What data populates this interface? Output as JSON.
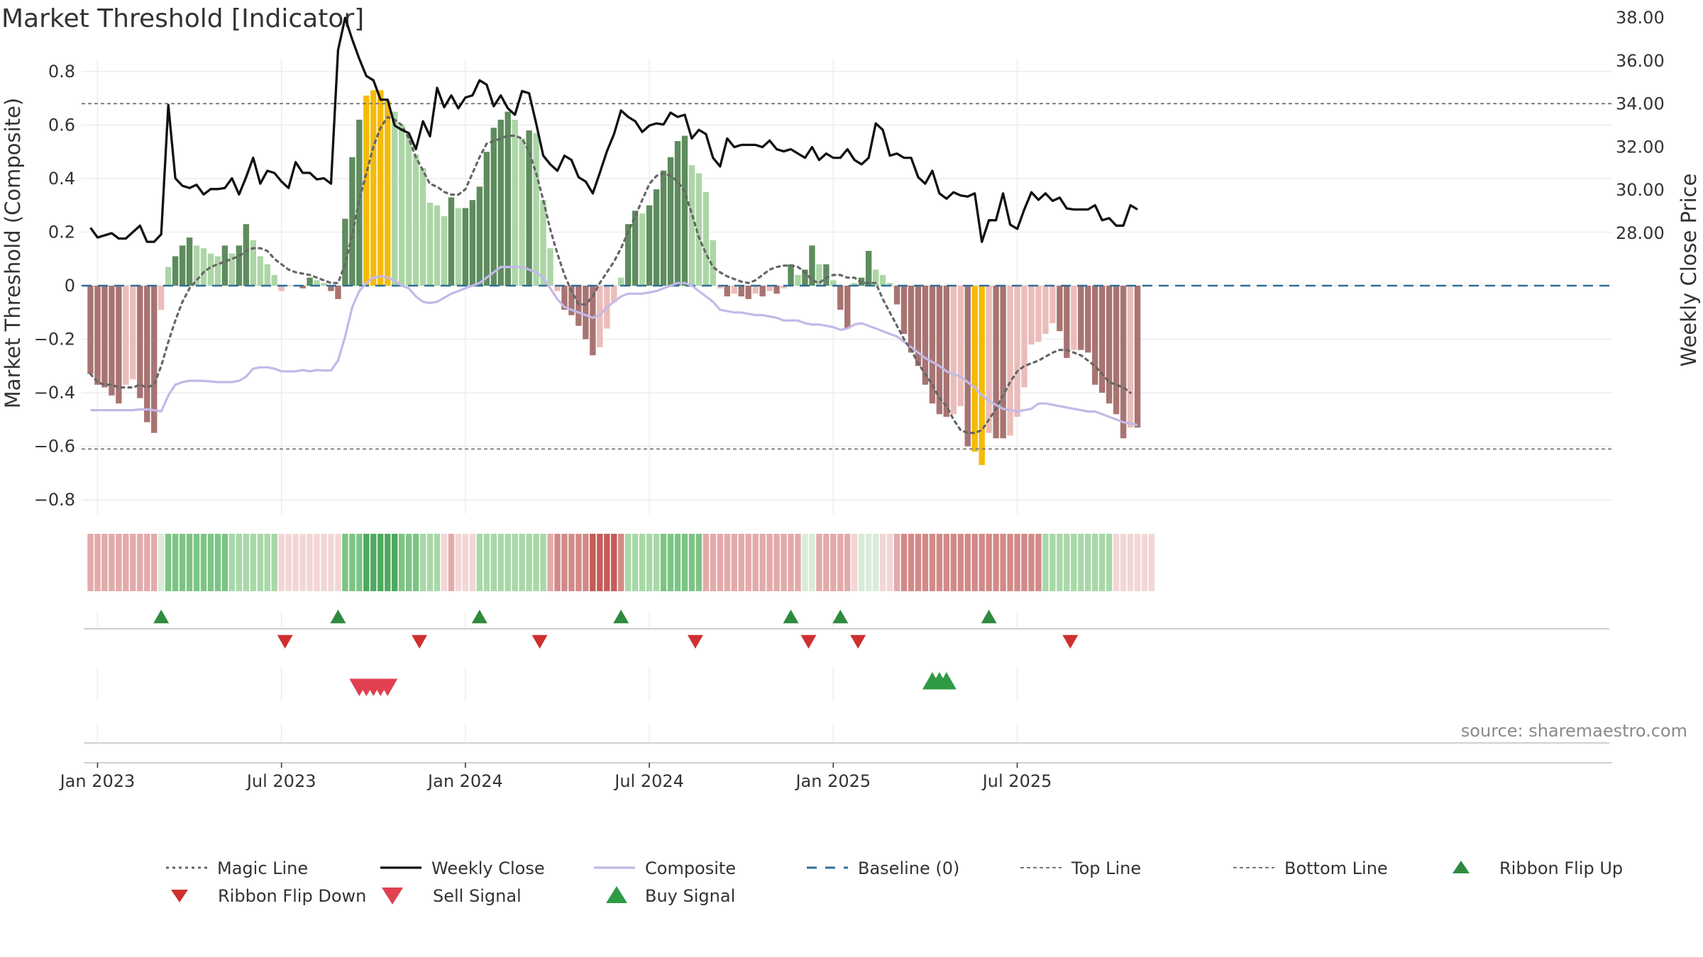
{
  "chart_data": {
    "type": "bar",
    "title": "Market Threshold [Indicator]",
    "ylabel": "Market Threshold (Composite)",
    "y2label": "Weekly Close Price",
    "ylim": [
      -0.85,
      0.85
    ],
    "y2lim": [
      26.95,
      39.8
    ],
    "y_ticks": [
      {
        "v": 0.8,
        "label": "0.8"
      },
      {
        "v": 0.6,
        "label": "0.6"
      },
      {
        "v": 0.4,
        "label": "0.4"
      },
      {
        "v": 0.2,
        "label": "0.2"
      },
      {
        "v": 0,
        "label": "0"
      },
      {
        "v": -0.2,
        "label": "−0.2"
      },
      {
        "v": -0.4,
        "label": "−0.4"
      },
      {
        "v": -0.6,
        "label": "−0.6"
      },
      {
        "v": -0.8,
        "label": "−0.8"
      }
    ],
    "y2_ticks": [
      {
        "v": 38,
        "label": "38.00"
      },
      {
        "v": 36,
        "label": "36.00"
      },
      {
        "v": 34,
        "label": "34.00"
      },
      {
        "v": 32,
        "label": "32.00"
      },
      {
        "v": 30,
        "label": "30.00"
      },
      {
        "v": 28,
        "label": "28.00"
      }
    ],
    "x_ticks": [
      {
        "week": 1.5,
        "label": "Jan 2023"
      },
      {
        "week": 27.5,
        "label": "Jul 2023"
      },
      {
        "week": 53.5,
        "label": "Jan 2024"
      },
      {
        "week": 79.5,
        "label": "Jul 2024"
      },
      {
        "week": 105.5,
        "label": "Jan 2025"
      },
      {
        "week": 131.5,
        "label": "Jul 2025"
      }
    ],
    "top_line": 0.68,
    "bottom_line": -0.61,
    "baseline": 0,
    "composite_bars": [
      -0.33,
      -0.37,
      -0.38,
      -0.41,
      -0.44,
      -0.37,
      -0.35,
      -0.42,
      -0.51,
      -0.55,
      -0.09,
      0.07,
      0.11,
      0.15,
      0.18,
      0.15,
      0.14,
      0.12,
      0.11,
      0.15,
      0.12,
      0.15,
      0.23,
      0.17,
      0.11,
      0.08,
      0.04,
      -0.02,
      0,
      0,
      -0.01,
      0.03,
      0.02,
      0.01,
      -0.02,
      -0.05,
      0.25,
      0.48,
      0.62,
      0.71,
      0.73,
      0.73,
      0.69,
      0.65,
      0.6,
      0.56,
      0.49,
      0.44,
      0.31,
      0.3,
      0.26,
      0.33,
      0.29,
      0.29,
      0.32,
      0.37,
      0.5,
      0.59,
      0.62,
      0.65,
      0.62,
      0.55,
      0.58,
      0.57,
      0.32,
      0.14,
      -0.02,
      -0.09,
      -0.11,
      -0.15,
      -0.2,
      -0.26,
      -0.23,
      -0.16,
      -0.06,
      0.03,
      0.23,
      0.28,
      0.27,
      0.3,
      0.36,
      0.43,
      0.48,
      0.54,
      0.56,
      0.45,
      0.42,
      0.35,
      0.17,
      -0.01,
      -0.04,
      -0.03,
      -0.04,
      -0.05,
      -0.03,
      -0.04,
      -0.02,
      -0.03,
      -0.01,
      0.08,
      0.04,
      0.06,
      0.15,
      0.08,
      0.08,
      0.02,
      -0.09,
      -0.16,
      0.01,
      0.03,
      0.13,
      0.06,
      0.04,
      0.01,
      -0.07,
      -0.18,
      -0.25,
      -0.3,
      -0.37,
      -0.44,
      -0.48,
      -0.49,
      -0.48,
      -0.45,
      -0.6,
      -0.62,
      -0.67,
      -0.55,
      -0.57,
      -0.57,
      -0.56,
      -0.49,
      -0.38,
      -0.22,
      -0.21,
      -0.18,
      -0.14,
      -0.17,
      -0.27,
      -0.24,
      -0.24,
      -0.25,
      -0.37,
      -0.4,
      -0.44,
      -0.48,
      -0.57,
      -0.53,
      -0.53
    ],
    "weekly_close": [
      28.25,
      27.8,
      27.9,
      28.0,
      27.75,
      27.75,
      28.05,
      28.35,
      27.6,
      27.6,
      27.95,
      33.95,
      30.55,
      30.2,
      30.1,
      30.25,
      29.8,
      30.05,
      30.05,
      30.1,
      30.55,
      29.8,
      30.6,
      31.5,
      30.3,
      30.9,
      30.8,
      30.4,
      30.1,
      31.3,
      30.8,
      30.8,
      30.5,
      30.55,
      30.3,
      36.5,
      38.0,
      37.0,
      36.1,
      35.3,
      35.1,
      34.2,
      34.2,
      33.0,
      32.8,
      32.65,
      31.9,
      33.2,
      32.5,
      34.75,
      33.85,
      34.4,
      33.8,
      34.3,
      34.4,
      35.1,
      34.9,
      33.9,
      34.4,
      33.8,
      33.5,
      34.6,
      34.5,
      33.1,
      31.6,
      31.2,
      30.9,
      31.6,
      31.4,
      30.6,
      30.4,
      29.85,
      30.8,
      31.8,
      32.6,
      33.7,
      33.4,
      33.2,
      32.7,
      33.0,
      33.1,
      33.05,
      33.6,
      33.4,
      33.5,
      32.4,
      32.8,
      32.6,
      31.5,
      31.1,
      32.4,
      32.0,
      32.1,
      32.1,
      32.1,
      32.0,
      32.3,
      31.9,
      31.8,
      31.9,
      31.7,
      31.5,
      32.0,
      31.4,
      31.7,
      31.5,
      31.5,
      31.9,
      31.4,
      31.2,
      31.5,
      33.1,
      32.8,
      31.6,
      31.7,
      31.5,
      31.5,
      30.6,
      30.3,
      30.9,
      29.85,
      29.6,
      29.9,
      29.75,
      29.7,
      29.85,
      27.6,
      28.6,
      28.6,
      29.85,
      28.4,
      28.2,
      29.1,
      29.9,
      29.55,
      29.85,
      29.5,
      29.65,
      29.15,
      29.1,
      29.1,
      29.1,
      29.3,
      28.6,
      28.7,
      28.35,
      28.35,
      29.3,
      29.1
    ],
    "composite_line": [
      -0.465,
      -0.465,
      -0.465,
      -0.465,
      -0.465,
      -0.465,
      -0.465,
      -0.462,
      -0.462,
      -0.465,
      -0.47,
      -0.41,
      -0.37,
      -0.36,
      -0.355,
      -0.355,
      -0.356,
      -0.358,
      -0.36,
      -0.36,
      -0.36,
      -0.355,
      -0.34,
      -0.31,
      -0.305,
      -0.305,
      -0.31,
      -0.32,
      -0.32,
      -0.32,
      -0.315,
      -0.32,
      -0.315,
      -0.317,
      -0.317,
      -0.28,
      -0.19,
      -0.08,
      -0.02,
      0.01,
      0.03,
      0.035,
      0.03,
      0.02,
      0,
      -0.01,
      -0.04,
      -0.06,
      -0.065,
      -0.06,
      -0.045,
      -0.03,
      -0.02,
      -0.01,
      0,
      0.01,
      0.03,
      0.05,
      0.07,
      0.07,
      0.07,
      0.07,
      0.06,
      0.05,
      0.03,
      -0.01,
      -0.05,
      -0.08,
      -0.09,
      -0.1,
      -0.11,
      -0.12,
      -0.11,
      -0.08,
      -0.06,
      -0.04,
      -0.03,
      -0.03,
      -0.03,
      -0.025,
      -0.02,
      -0.01,
      0,
      0.01,
      0.01,
      0,
      -0.02,
      -0.04,
      -0.06,
      -0.09,
      -0.095,
      -0.1,
      -0.1,
      -0.105,
      -0.11,
      -0.11,
      -0.115,
      -0.12,
      -0.13,
      -0.13,
      -0.13,
      -0.14,
      -0.145,
      -0.145,
      -0.15,
      -0.155,
      -0.165,
      -0.16,
      -0.145,
      -0.14,
      -0.15,
      -0.16,
      -0.17,
      -0.18,
      -0.19,
      -0.21,
      -0.23,
      -0.25,
      -0.27,
      -0.285,
      -0.3,
      -0.32,
      -0.33,
      -0.34,
      -0.36,
      -0.38,
      -0.41,
      -0.43,
      -0.445,
      -0.46,
      -0.465,
      -0.47,
      -0.465,
      -0.46,
      -0.44,
      -0.44,
      -0.445,
      -0.45,
      -0.455,
      -0.46,
      -0.465,
      -0.47,
      -0.47,
      -0.48,
      -0.49,
      -0.5,
      -0.51,
      -0.515,
      -0.52
    ],
    "magic_line": [
      -0.33,
      -0.36,
      -0.37,
      -0.37,
      -0.38,
      -0.38,
      -0.38,
      -0.37,
      -0.38,
      -0.37,
      -0.3,
      -0.21,
      -0.13,
      -0.06,
      -0.01,
      0.02,
      0.05,
      0.07,
      0.08,
      0.09,
      0.1,
      0.11,
      0.13,
      0.14,
      0.14,
      0.13,
      0.1,
      0.08,
      0.06,
      0.05,
      0.045,
      0.04,
      0.03,
      0.02,
      0.01,
      0.01,
      0.08,
      0.19,
      0.32,
      0.42,
      0.52,
      0.59,
      0.63,
      0.62,
      0.6,
      0.55,
      0.48,
      0.43,
      0.38,
      0.37,
      0.35,
      0.34,
      0.34,
      0.36,
      0.42,
      0.48,
      0.53,
      0.54,
      0.55,
      0.56,
      0.56,
      0.55,
      0.5,
      0.42,
      0.32,
      0.21,
      0.12,
      0.04,
      -0.02,
      -0.07,
      -0.07,
      -0.04,
      0.01,
      0.05,
      0.09,
      0.14,
      0.2,
      0.26,
      0.32,
      0.38,
      0.41,
      0.42,
      0.41,
      0.39,
      0.35,
      0.27,
      0.18,
      0.12,
      0.07,
      0.05,
      0.035,
      0.025,
      0.015,
      0.01,
      0.02,
      0.04,
      0.06,
      0.07,
      0.075,
      0.075,
      0.07,
      0.05,
      0.02,
      0.01,
      0.03,
      0.04,
      0.04,
      0.03,
      0.03,
      0.01,
      0.01,
      0.01,
      -0.05,
      -0.1,
      -0.15,
      -0.2,
      -0.24,
      -0.29,
      -0.33,
      -0.37,
      -0.42,
      -0.45,
      -0.5,
      -0.54,
      -0.55,
      -0.55,
      -0.54,
      -0.5,
      -0.46,
      -0.41,
      -0.36,
      -0.32,
      -0.3,
      -0.29,
      -0.28,
      -0.265,
      -0.25,
      -0.24,
      -0.24,
      -0.25,
      -0.26,
      -0.28,
      -0.3,
      -0.33,
      -0.36,
      -0.37,
      -0.38,
      -0.4
    ],
    "ribbon": [
      -2,
      -2,
      -2,
      -2,
      -2,
      -2,
      -2,
      -2,
      -2,
      -2,
      1,
      3,
      3,
      3,
      3,
      3,
      3,
      3,
      3,
      3,
      2,
      2,
      2,
      2,
      2,
      2,
      2,
      -1,
      -1,
      -1,
      -1,
      -1,
      -1,
      -1,
      -1,
      -1,
      3,
      3,
      3,
      4,
      4,
      4,
      4,
      4,
      3,
      3,
      3,
      2,
      2,
      2,
      -1,
      -2,
      -1,
      -1,
      -1,
      2,
      2,
      2,
      2,
      2,
      2,
      2,
      2,
      2,
      2,
      -2,
      -3,
      -3,
      -3,
      -3,
      -3,
      -4,
      -4,
      -4,
      -4,
      -3,
      2,
      2,
      2,
      2,
      2,
      3,
      3,
      3,
      3,
      3,
      3,
      -2,
      -2,
      -2,
      -2,
      -2,
      -2,
      -2,
      -2,
      -2,
      -2,
      -2,
      -2,
      -2,
      -2,
      1,
      1,
      -2,
      -2,
      -2,
      -2,
      -2,
      -1,
      1,
      1,
      1,
      -1,
      -1,
      -2,
      -3,
      -3,
      -3,
      -3,
      -3,
      -3,
      -3,
      -3,
      -3,
      -3,
      -3,
      -3,
      -3,
      -3,
      -3,
      -3,
      -3,
      -3,
      -3,
      -3,
      2,
      2,
      2,
      2,
      2,
      2,
      2,
      2,
      2,
      2,
      -1,
      -1,
      -1,
      -1,
      -1,
      -1
    ],
    "ribbon_flip_up_weeks": [
      10.5,
      35.5,
      55.5,
      75.5,
      99.5,
      106.5,
      127.5
    ],
    "ribbon_flip_down_weeks": [
      28,
      47,
      64,
      86,
      102,
      109,
      139
    ],
    "sell_signal_weeks": [
      38,
      39,
      40,
      41,
      42
    ],
    "buy_signal_weeks": [
      119,
      120,
      121
    ],
    "legend": [
      {
        "key": "magic",
        "label": "Magic Line"
      },
      {
        "key": "close",
        "label": "Weekly Close"
      },
      {
        "key": "composite",
        "label": "Composite"
      },
      {
        "key": "baseline",
        "label": "Baseline (0)"
      },
      {
        "key": "top",
        "label": "Top Line"
      },
      {
        "key": "bottom",
        "label": "Bottom Line"
      },
      {
        "key": "flipup",
        "label": "Ribbon Flip Up"
      },
      {
        "key": "flipdown",
        "label": "Ribbon Flip Down"
      },
      {
        "key": "sell",
        "label": "Sell Signal"
      },
      {
        "key": "buy",
        "label": "Buy Signal"
      }
    ],
    "colors": {
      "bar_pos_strong": "#5e8c5e",
      "bar_pos_weak": "#acd6a6",
      "bar_neg_strong": "#a87472",
      "bar_neg_weak": "#ebbdba",
      "bar_extreme": "#f5bb0a",
      "magic": "#666666",
      "close": "#111111",
      "composite": "#c4b8e8",
      "baseline": "#2e6f96",
      "guide": "#777777",
      "flip_up": "#2e8b3d",
      "flip_down": "#cf3030",
      "sell": "#e04050",
      "buy": "#2f9a44",
      "ribbon_pos": [
        "#d8ecd8",
        "#a8d8a8",
        "#7cc484",
        "#4eaa5e"
      ],
      "ribbon_neg": [
        "#f2d6d6",
        "#e4aaaa",
        "#d28a88",
        "#c45c58"
      ]
    },
    "source": "source: sharemaestro.com"
  }
}
